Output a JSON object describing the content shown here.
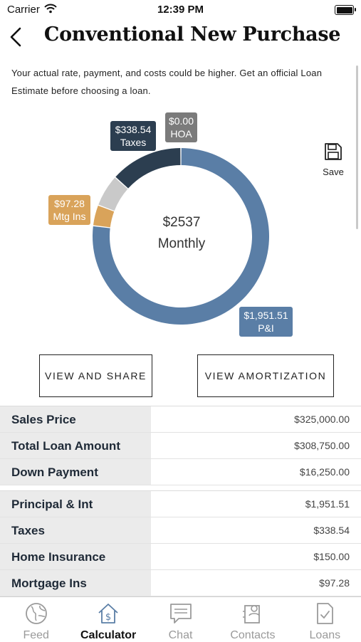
{
  "status_bar": {
    "carrier": "Carrier",
    "time": "12:39 PM"
  },
  "header": {
    "title": "Conventional New Purchase",
    "back_icon": "chevron-left-icon"
  },
  "disclaimer": "Your actual rate, payment, and costs could be higher. Get an official Loan Estimate before choosing a loan.",
  "save": {
    "label": "Save",
    "icon": "floppy-disk-icon"
  },
  "chart_data": {
    "type": "pie",
    "variant": "donut",
    "center_amount": "$2537",
    "center_label": "Monthly",
    "slices": [
      {
        "label": "P&I",
        "value": 1951.51,
        "display": "$1,951.51",
        "color": "#5a7ea6"
      },
      {
        "label": "Mtg Ins",
        "value": 97.28,
        "display": "$97.28",
        "color": "#d9a35a"
      },
      {
        "label": "Home Insurance",
        "value": 150.0,
        "display": "",
        "color": "#c9c9c9"
      },
      {
        "label": "Taxes",
        "value": 338.54,
        "display": "$338.54",
        "color": "#2c3e50"
      },
      {
        "label": "HOA",
        "value": 0.0,
        "display": "$0.00",
        "color": "#7b7b7b"
      }
    ]
  },
  "buttons": {
    "share": "VIEW AND SHARE",
    "amortization": "VIEW AMORTIZATION"
  },
  "loan_summary": [
    {
      "label": "Sales Price",
      "value": "$325,000.00"
    },
    {
      "label": "Total Loan Amount",
      "value": "$308,750.00"
    },
    {
      "label": "Down Payment",
      "value": "$16,250.00"
    }
  ],
  "payment_breakdown": [
    {
      "label": "Principal & Int",
      "value": "$1,951.51"
    },
    {
      "label": "Taxes",
      "value": "$338.54"
    },
    {
      "label": "Home Insurance",
      "value": "$150.00"
    },
    {
      "label": "Mortgage Ins",
      "value": "$97.28"
    }
  ],
  "tabs": [
    {
      "label": "Feed",
      "icon": "globe-icon",
      "active": false
    },
    {
      "label": "Calculator",
      "icon": "house-dollar-icon",
      "active": true
    },
    {
      "label": "Chat",
      "icon": "chat-bubble-icon",
      "active": false
    },
    {
      "label": "Contacts",
      "icon": "contacts-icon",
      "active": false
    },
    {
      "label": "Loans",
      "icon": "document-check-icon",
      "active": false
    }
  ]
}
